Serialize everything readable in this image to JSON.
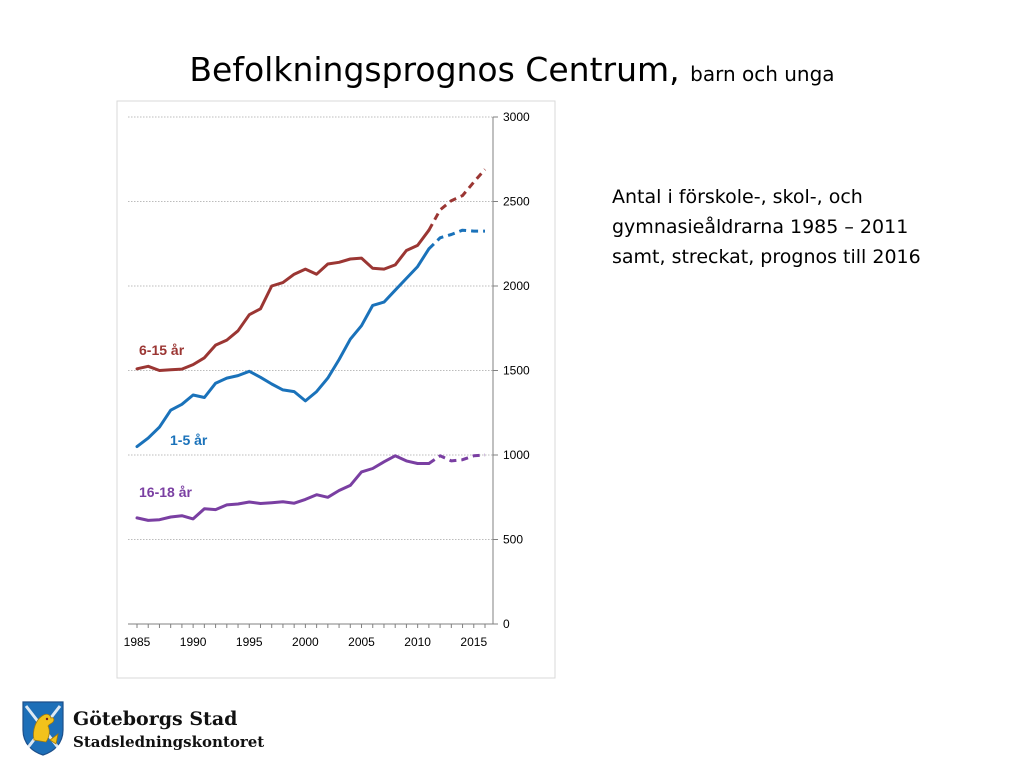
{
  "slide": {
    "title": "Befolkningsprognos Centrum,",
    "subtitle": "barn och unga",
    "description": [
      "Antal i förskole-, skol-, och",
      "gymnasieåldrarna 1985 – 2011",
      "samt, streckat, prognos till 2016"
    ]
  },
  "footer": {
    "org_name": "Göteborgs Stad",
    "org_sub": "Stadsledningskontoret",
    "logo_icon": "goteborg-lion-crest-icon"
  },
  "chart_data": {
    "type": "line",
    "xlim": [
      1985,
      2016
    ],
    "ylim": [
      0,
      3000
    ],
    "x_ticks": [
      1985,
      1990,
      1995,
      2000,
      2005,
      2010,
      2015
    ],
    "y_ticks": [
      0,
      500,
      1000,
      1500,
      2000,
      2500,
      3000
    ],
    "y_axis_side": "right",
    "grid": "horizontal dotted",
    "series": [
      {
        "name": "6-15 år",
        "color": "#9b3633",
        "actual": {
          "x": [
            1985,
            1986,
            1987,
            1988,
            1989,
            1990,
            1991,
            1992,
            1993,
            1994,
            1995,
            1996,
            1997,
            1998,
            1999,
            2000,
            2001,
            2002,
            2003,
            2004,
            2005,
            2006,
            2007,
            2008,
            2009,
            2010,
            2011
          ],
          "y": [
            1510,
            1525,
            1500,
            1505,
            1508,
            1535,
            1575,
            1650,
            1680,
            1735,
            1830,
            1865,
            2000,
            2020,
            2070,
            2100,
            2070,
            2130,
            2140,
            2160,
            2165,
            2105,
            2100,
            2125,
            2210,
            2240,
            2330
          ]
        },
        "forecast": {
          "x": [
            2011,
            2012,
            2013,
            2014,
            2015,
            2016
          ],
          "y": [
            2330,
            2450,
            2505,
            2535,
            2615,
            2690
          ]
        }
      },
      {
        "name": "1-5 år",
        "color": "#1a72ba",
        "actual": {
          "x": [
            1985,
            1986,
            1987,
            1988,
            1989,
            1990,
            1991,
            1992,
            1993,
            1994,
            1995,
            1996,
            1997,
            1998,
            1999,
            2000,
            2001,
            2002,
            2003,
            2004,
            2005,
            2006,
            2007,
            2008,
            2009,
            2010,
            2011
          ],
          "y": [
            1050,
            1100,
            1165,
            1265,
            1300,
            1355,
            1340,
            1425,
            1455,
            1470,
            1495,
            1460,
            1420,
            1385,
            1375,
            1320,
            1375,
            1455,
            1565,
            1685,
            1765,
            1885,
            1905,
            1975,
            2045,
            2115,
            2220
          ]
        },
        "forecast": {
          "x": [
            2011,
            2012,
            2013,
            2014,
            2015,
            2016
          ],
          "y": [
            2220,
            2285,
            2305,
            2330,
            2325,
            2325
          ]
        }
      },
      {
        "name": "16-18 år",
        "color": "#7a3fa2",
        "actual": {
          "x": [
            1985,
            1986,
            1987,
            1988,
            1989,
            1990,
            1991,
            1992,
            1993,
            1994,
            1995,
            1996,
            1997,
            1998,
            1999,
            2000,
            2001,
            2002,
            2003,
            2004,
            2005,
            2006,
            2007,
            2008,
            2009,
            2010,
            2011
          ],
          "y": [
            628,
            613,
            617,
            633,
            641,
            622,
            682,
            677,
            705,
            710,
            722,
            713,
            718,
            723,
            715,
            737,
            765,
            750,
            790,
            820,
            900,
            920,
            960,
            995,
            965,
            950,
            950
          ]
        },
        "forecast": {
          "x": [
            2011,
            2012,
            2013,
            2014,
            2015,
            2016
          ],
          "y": [
            950,
            995,
            965,
            972,
            995,
            1000
          ]
        }
      }
    ]
  }
}
